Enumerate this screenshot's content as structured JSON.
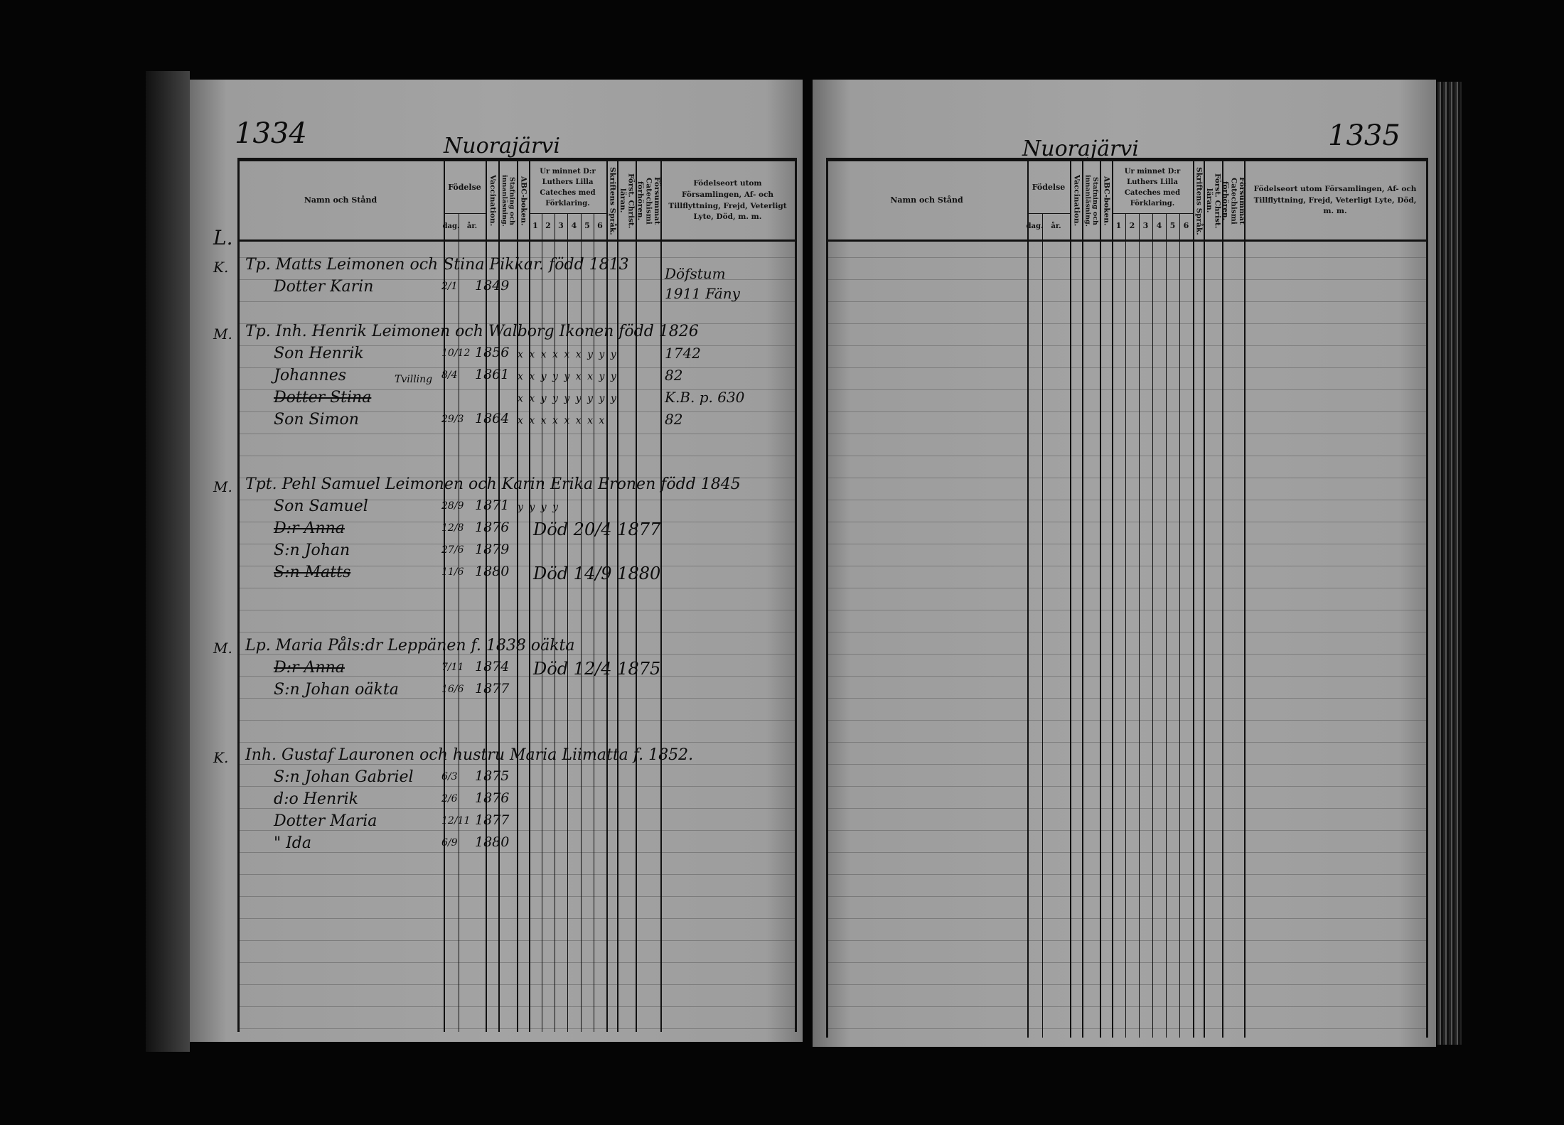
{
  "document": {
    "left_page": {
      "page_number": "1334",
      "parish": "Nuorajärvi",
      "section_letter": "L."
    },
    "right_page": {
      "page_number": "1335",
      "parish": "Nuorajärvi"
    },
    "columns": {
      "name": "Namn och Stånd",
      "birth": "Födelse",
      "day": "dag.",
      "year": "år.",
      "vaccination": "Vaccination.",
      "reading": "Stafning och innanläsning.",
      "abc": "ABC-boken.",
      "catechism": "Ur minnet D:r Luthers Lilla Cateches med Förklaring.",
      "catechism_parts": [
        "1",
        "2",
        "3",
        "4",
        "5",
        "6"
      ],
      "scripture": "Skriftens Språk.",
      "christianity": "Först. Christ. läran.",
      "missed": "Försummat Catechismi förhören.",
      "remarks": "Födelseort utom Församlingen, Af- och Tillflyttning, Frejd, Veterligt Lyte, Död, m. m."
    },
    "families": [
      {
        "margin": "K.",
        "head": "Tp. Matts Leimonen och Stina Pikkar. född 1813",
        "members": [
          {
            "name": "Dotter Karin",
            "date": "2/1",
            "year": "1849",
            "marks": "",
            "remark": "Döfstum",
            "remark2": "1911 Fäny"
          }
        ]
      },
      {
        "margin": "M.",
        "head": "Tp. Inh. Henrik Leimonen och Walborg Ikonen född 1826",
        "members": [
          {
            "name": "Son Henrik",
            "date": "10/12",
            "year": "1856",
            "marks": "x x x x x x y y y",
            "remark": "1742"
          },
          {
            "name": "Johannes",
            "note": "Tvilling",
            "date": "8/4",
            "year": "1861",
            "marks": "x x y y y x x y y",
            "remark": "82"
          },
          {
            "name": "Dotter Stina",
            "struck": true,
            "marks": "x x y y y y y y y",
            "remark": "K.B. p. 630"
          },
          {
            "name": "Son Simon",
            "date": "29/3",
            "year": "1864",
            "marks": "x x x x x x x x",
            "remark": "82"
          }
        ]
      },
      {
        "margin": "M.",
        "head": "Tpt. Pehl Samuel Leimonen och Karin Erika Eronen född 1845",
        "members": [
          {
            "name": "Son Samuel",
            "date": "28/9",
            "year": "1871",
            "marks": "y y y y"
          },
          {
            "name": "D:r Anna",
            "struck": true,
            "date": "12/8",
            "year": "1876",
            "inline": "Död 20/4 1877"
          },
          {
            "name": "S:n Johan",
            "date": "27/6",
            "year": "1879"
          },
          {
            "name": "S:n Matts",
            "struck": true,
            "date": "11/6",
            "year": "1880",
            "inline": "Död 14/9 1880"
          }
        ]
      },
      {
        "margin": "M.",
        "head": "Lp. Maria Påls:dr Leppänen f. 1838 oäkta",
        "members": [
          {
            "name": "D:r Anna",
            "struck": true,
            "date": "7/11",
            "year": "1874",
            "inline": "Död 12/4 1875"
          },
          {
            "name": "S:n Johan oäkta",
            "date": "16/6",
            "year": "1877"
          }
        ]
      },
      {
        "margin": "K.",
        "head": "Inh. Gustaf Lauronen och hustru Maria Liimatta f. 1852.",
        "members": [
          {
            "name": "S:n Johan Gabriel",
            "date": "6/3",
            "year": "1875"
          },
          {
            "name": "d:o Henrik",
            "date": "2/6",
            "year": "1876"
          },
          {
            "name": "Dotter Maria",
            "date": "12/11",
            "year": "1877"
          },
          {
            "name": "\" Ida",
            "date": "6/9",
            "year": "1880"
          }
        ]
      }
    ]
  }
}
